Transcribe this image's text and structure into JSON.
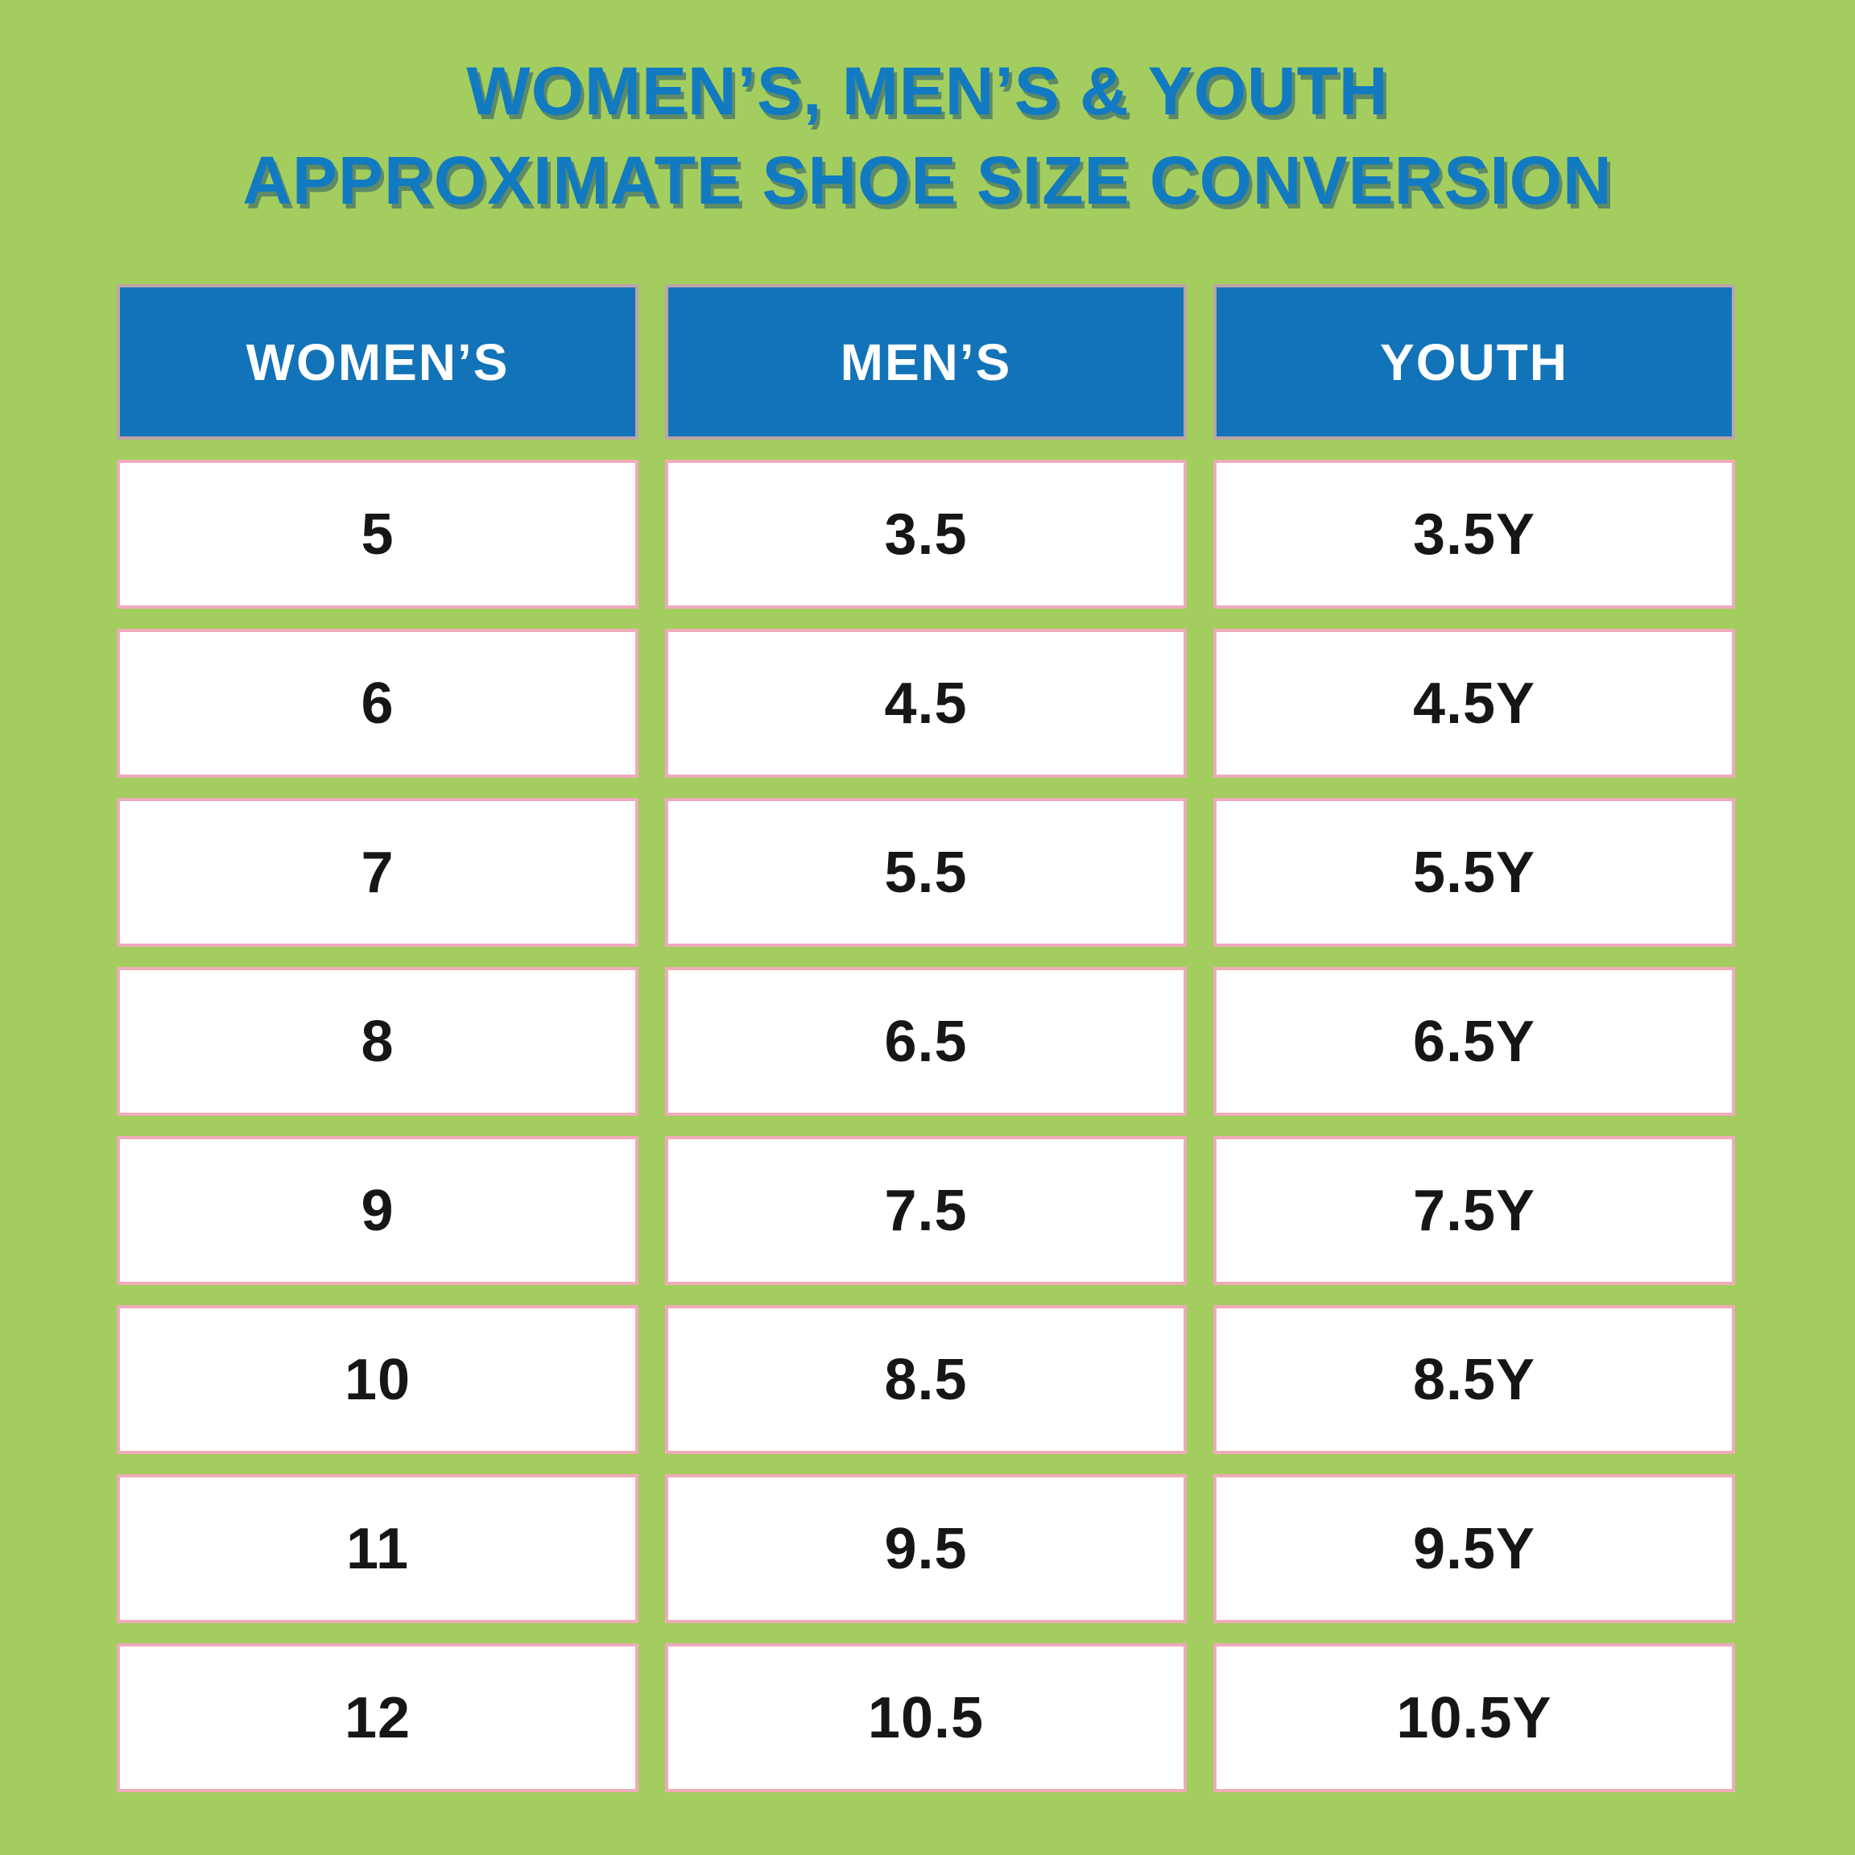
{
  "page": {
    "background_color": "#a3cd5f",
    "accent_blue": "#1273b9",
    "title_blue": "#117ac1",
    "cell_border_pink": "#efabba"
  },
  "title": {
    "line1": "WOMEN’S, MEN’S & YOUTH",
    "line2": "APPROXIMATE SHOE SIZE CONVERSION"
  },
  "table": {
    "headers": [
      "WOMEN’S",
      "MEN’S",
      "YOUTH"
    ],
    "rows": [
      [
        "5",
        "3.5",
        "3.5Y"
      ],
      [
        "6",
        "4.5",
        "4.5Y"
      ],
      [
        "7",
        "5.5",
        "5.5Y"
      ],
      [
        "8",
        "6.5",
        "6.5Y"
      ],
      [
        "9",
        "7.5",
        "7.5Y"
      ],
      [
        "10",
        "8.5",
        "8.5Y"
      ],
      [
        "11",
        "9.5",
        "9.5Y"
      ],
      [
        "12",
        "10.5",
        "10.5Y"
      ]
    ]
  },
  "chart_data": {
    "type": "table",
    "title": "WOMEN’S, MEN’S & YOUTH APPROXIMATE SHOE SIZE CONVERSION",
    "columns": [
      "WOMEN’S",
      "MEN’S",
      "YOUTH"
    ],
    "rows": [
      [
        "5",
        "3.5",
        "3.5Y"
      ],
      [
        "6",
        "4.5",
        "4.5Y"
      ],
      [
        "7",
        "5.5",
        "5.5Y"
      ],
      [
        "8",
        "6.5",
        "6.5Y"
      ],
      [
        "9",
        "7.5",
        "7.5Y"
      ],
      [
        "10",
        "8.5",
        "8.5Y"
      ],
      [
        "11",
        "9.5",
        "9.5Y"
      ],
      [
        "12",
        "10.5",
        "10.5Y"
      ]
    ],
    "womens_sizes": [
      5,
      6,
      7,
      8,
      9,
      10,
      11,
      12
    ],
    "mens_sizes": [
      3.5,
      4.5,
      5.5,
      6.5,
      7.5,
      8.5,
      9.5,
      10.5
    ],
    "youth_sizes": [
      "3.5Y",
      "4.5Y",
      "5.5Y",
      "6.5Y",
      "7.5Y",
      "8.5Y",
      "9.5Y",
      "10.5Y"
    ]
  }
}
